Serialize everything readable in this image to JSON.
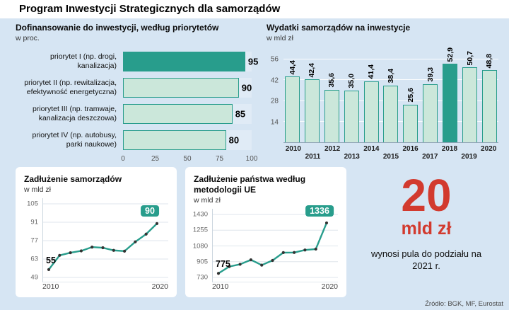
{
  "page_title": "Program Inwestycji Strategicznych dla samorządów",
  "source": "Źródło: BGK, MF, Eurostat",
  "colors": {
    "background": "#d6e5f3",
    "panel": "#ffffff",
    "teal_dark": "#289d8c",
    "teal_light": "#cbe7da",
    "red": "#d23a2e"
  },
  "highlight_block": {
    "big_number": "20",
    "unit": "mld zł",
    "caption": "wynosi pula do podziału na 2021 r."
  },
  "chart_data": [
    {
      "id": "dofinansowanie-priorytety",
      "type": "bar",
      "orientation": "horizontal",
      "title": "Dofinansowanie do inwestycji, według priorytetów",
      "subtitle": "w proc.",
      "categories": [
        "priorytet I (np. drogi, kanalizacja)",
        "priorytet II (np. rewitalizacja, efektywność energetyczna)",
        "priorytet III (np. tramwaje, kanalizacja deszczowa)",
        "priorytet IV (np. autobusy, parki naukowe)"
      ],
      "values": [
        95,
        90,
        85,
        80
      ],
      "value_labels": [
        "95",
        "90",
        "85",
        "80"
      ],
      "xlim": [
        0,
        100
      ],
      "xticks": [
        0,
        25,
        50,
        75,
        100
      ],
      "highlight_index": 0
    },
    {
      "id": "wydatki-inwestycje",
      "type": "bar",
      "orientation": "vertical",
      "title": "Wydatki samorządów na inwestycje",
      "subtitle": "w mld zł",
      "categories": [
        "2010",
        "2011",
        "2012",
        "2013",
        "2014",
        "2015",
        "2016",
        "2017",
        "2018",
        "2019",
        "2020"
      ],
      "values": [
        44.4,
        42.4,
        35.6,
        35.0,
        41.4,
        38.4,
        25.6,
        39.3,
        52.9,
        50.7,
        48.8
      ],
      "value_labels": [
        "44,4",
        "42,4",
        "35,6",
        "35,0",
        "41,4",
        "38,4",
        "25,6",
        "39,3",
        "52,9",
        "50,7",
        "48,8"
      ],
      "ylim": [
        0,
        56
      ],
      "yticks": [
        14,
        28,
        42,
        56
      ],
      "highlight_index": 8
    },
    {
      "id": "zadluzenie-samorzadow",
      "type": "line",
      "title": "Zadłużenie samorządów",
      "subtitle": "w mld zł",
      "x": [
        "2010",
        "2011",
        "2012",
        "2013",
        "2014",
        "2015",
        "2016",
        "2017",
        "2018",
        "2019",
        "2020"
      ],
      "values": [
        55,
        65.8,
        67.8,
        69.2,
        72.1,
        71.6,
        69.6,
        69.0,
        76.1,
        82.0,
        90
      ],
      "ylim": [
        49,
        105
      ],
      "yticks": [
        49,
        63,
        77,
        91,
        105
      ],
      "xticks": [
        "2010",
        "2020"
      ],
      "start_label": "55",
      "end_label": "90"
    },
    {
      "id": "zadluzenie-panstwa",
      "type": "line",
      "title": "Zadłużenie państwa według metodologii UE",
      "subtitle": "w mld zł",
      "x": [
        "2010",
        "2011",
        "2012",
        "2013",
        "2014",
        "2015",
        "2016",
        "2017",
        "2018",
        "2019",
        "2020"
      ],
      "values": [
        775,
        851,
        876,
        926,
        867,
        919,
        1006,
        1007,
        1035,
        1045,
        1336
      ],
      "ylim": [
        730,
        1430
      ],
      "yticks": [
        730,
        905,
        1080,
        1255,
        1430
      ],
      "xticks": [
        "2010",
        "2020"
      ],
      "start_label": "775",
      "end_label": "1336"
    }
  ]
}
